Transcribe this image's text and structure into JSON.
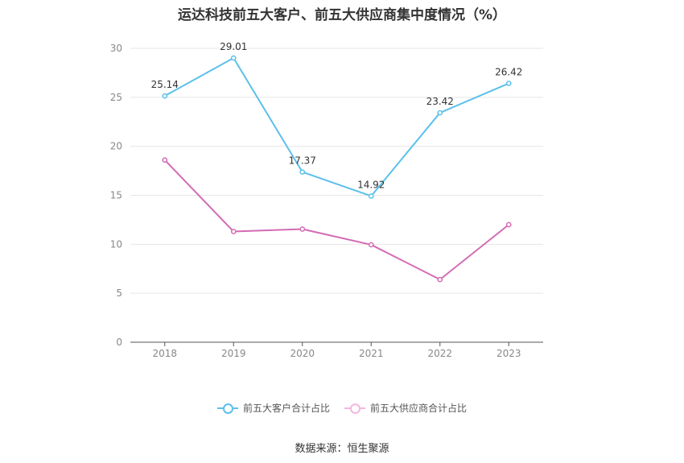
{
  "chart_data": {
    "type": "line",
    "title": "运达科技前五大客户、前五大供应商集中度情况（%）",
    "xlabel": "",
    "ylabel": "",
    "categories": [
      "2018",
      "2019",
      "2020",
      "2021",
      "2022",
      "2023"
    ],
    "ylim": [
      0,
      30
    ],
    "yticks": [
      0,
      5,
      10,
      15,
      20,
      25,
      30
    ],
    "grid": true,
    "legend_position": "bottom",
    "series": [
      {
        "name": "前五大客户合计占比",
        "color": "#5bc0eb",
        "values": [
          25.14,
          29.01,
          17.37,
          14.92,
          23.42,
          26.42
        ],
        "labels": [
          "25.14",
          "29.01",
          "17.37",
          "14.92",
          "23.42",
          "26.42"
        ],
        "show_labels": true
      },
      {
        "name": "前五大供应商合计占比",
        "color": "#d36bb4",
        "values": [
          18.6,
          11.3,
          11.55,
          9.95,
          6.4,
          12.0
        ],
        "show_labels": false
      }
    ]
  },
  "source": "数据来源：恒生聚源"
}
